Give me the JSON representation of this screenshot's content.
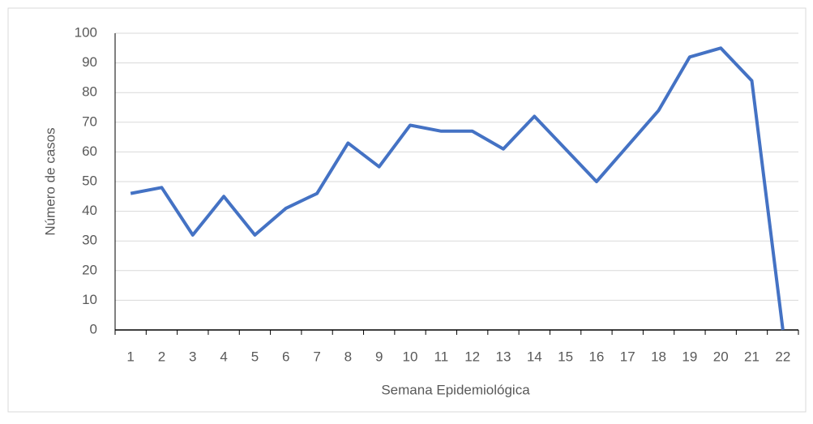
{
  "chart_data": {
    "type": "line",
    "xlabel": "Semana Epidemiológica",
    "ylabel": "Número de casos",
    "categories": [
      "1",
      "2",
      "3",
      "4",
      "5",
      "6",
      "7",
      "8",
      "9",
      "10",
      "11",
      "12",
      "13",
      "14",
      "15",
      "16",
      "17",
      "18",
      "19",
      "20",
      "21",
      "22"
    ],
    "series": [
      {
        "name": "Número de casos",
        "color": "#4472c4",
        "values": [
          46,
          48,
          32,
          45,
          32,
          41,
          46,
          63,
          55,
          69,
          67,
          67,
          61,
          72,
          61,
          50,
          62,
          74,
          92,
          95,
          84,
          0
        ]
      }
    ],
    "ylim": [
      0,
      100
    ],
    "yticks": [
      0,
      10,
      20,
      30,
      40,
      50,
      60,
      70,
      80,
      90,
      100
    ],
    "grid": true
  }
}
